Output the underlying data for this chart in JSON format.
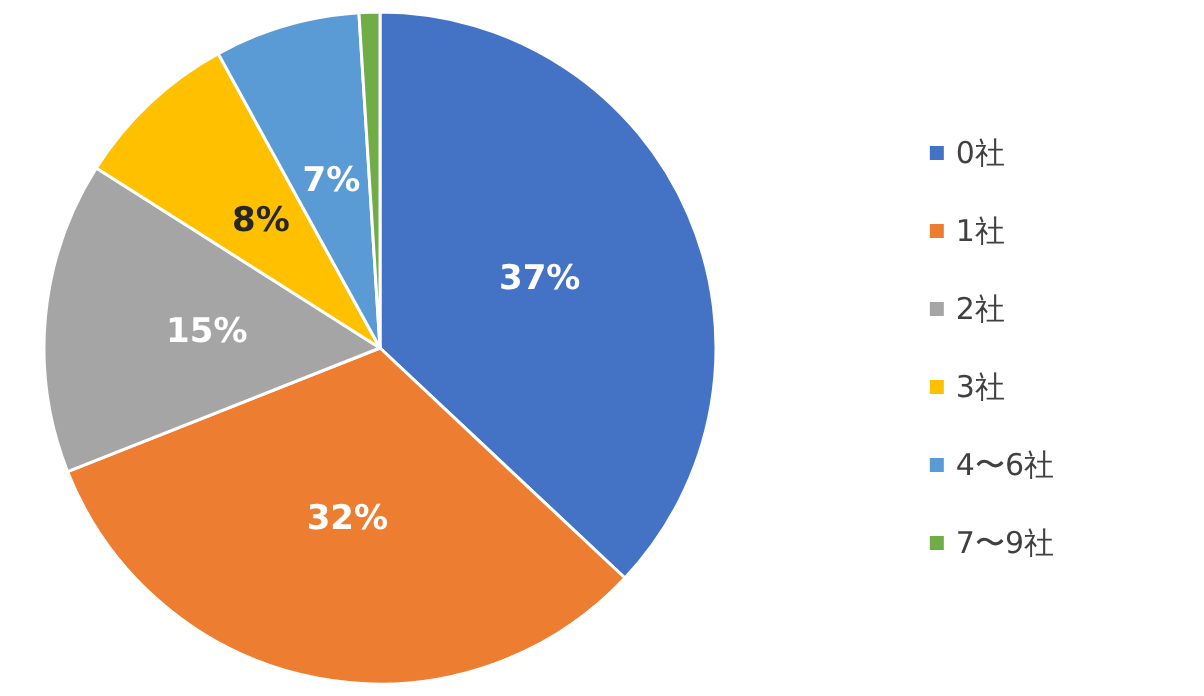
{
  "chart_data": {
    "type": "pie",
    "categories": [
      "0社",
      "1社",
      "2社",
      "3社",
      "4〜6社",
      "7〜9社"
    ],
    "values": [
      37,
      32,
      15,
      8,
      7,
      1
    ],
    "value_labels": [
      "37%",
      "32%",
      "15%",
      "8%",
      "7%",
      null
    ],
    "colors": [
      "#4472c4",
      "#ed7d31",
      "#a5a5a5",
      "#ffc000",
      "#5b9bd5",
      "#70ad47"
    ],
    "legend": "right"
  }
}
